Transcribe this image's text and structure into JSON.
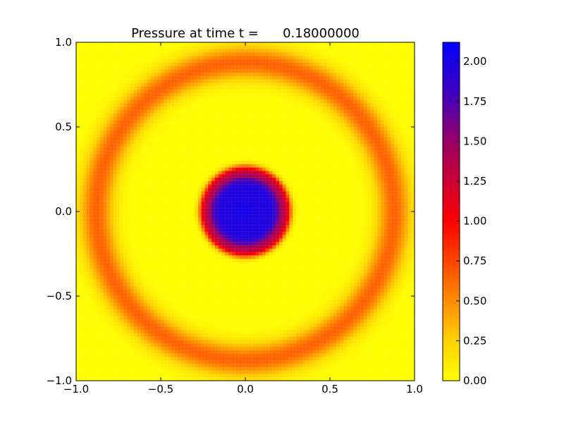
{
  "chart_data": {
    "type": "heatmap",
    "title": "Pressure at time t =      0.18000000",
    "xlim": [
      -1.0,
      1.0
    ],
    "ylim": [
      -1.0,
      1.0
    ],
    "x_ticks": [
      -1.0,
      -0.5,
      0.0,
      0.5,
      1.0
    ],
    "y_ticks": [
      -1.0,
      -0.5,
      0.0,
      0.5,
      1.0
    ],
    "x_tick_labels": [
      "−1.0",
      "−0.5",
      "0.0",
      "0.5",
      "1.0"
    ],
    "y_tick_labels": [
      "−1.0",
      "−0.5",
      "0.0",
      "0.5",
      "1.0"
    ],
    "grid_resolution": 100,
    "field": {
      "description": "radially symmetric pressure field",
      "inner_core": {
        "radius_edge": 0.22,
        "value": 2.05
      },
      "inner_ring": {
        "radius": 0.24,
        "value": 1.0
      },
      "outer_ring": {
        "radius": 0.88,
        "width": 0.1,
        "value": 0.65
      },
      "background_value": 0.0
    },
    "colorbar": {
      "min": 0.0,
      "max": 2.12,
      "ticks": [
        0.0,
        0.25,
        0.5,
        0.75,
        1.0,
        1.25,
        1.5,
        1.75,
        2.0
      ],
      "tick_labels": [
        "0.00",
        "0.25",
        "0.50",
        "0.75",
        "1.00",
        "1.25",
        "1.50",
        "1.75",
        "2.00"
      ],
      "colormap": [
        {
          "v": 0.0,
          "color": "#ffff00"
        },
        {
          "v": 0.25,
          "color": "#ffd200"
        },
        {
          "v": 0.5,
          "color": "#ff8c00"
        },
        {
          "v": 0.75,
          "color": "#ff4500"
        },
        {
          "v": 1.0,
          "color": "#ff0000"
        },
        {
          "v": 1.25,
          "color": "#cc0033"
        },
        {
          "v": 1.5,
          "color": "#990066"
        },
        {
          "v": 1.75,
          "color": "#4d00b3"
        },
        {
          "v": 2.12,
          "color": "#0000ff"
        }
      ]
    },
    "frame_color": "#000000"
  }
}
